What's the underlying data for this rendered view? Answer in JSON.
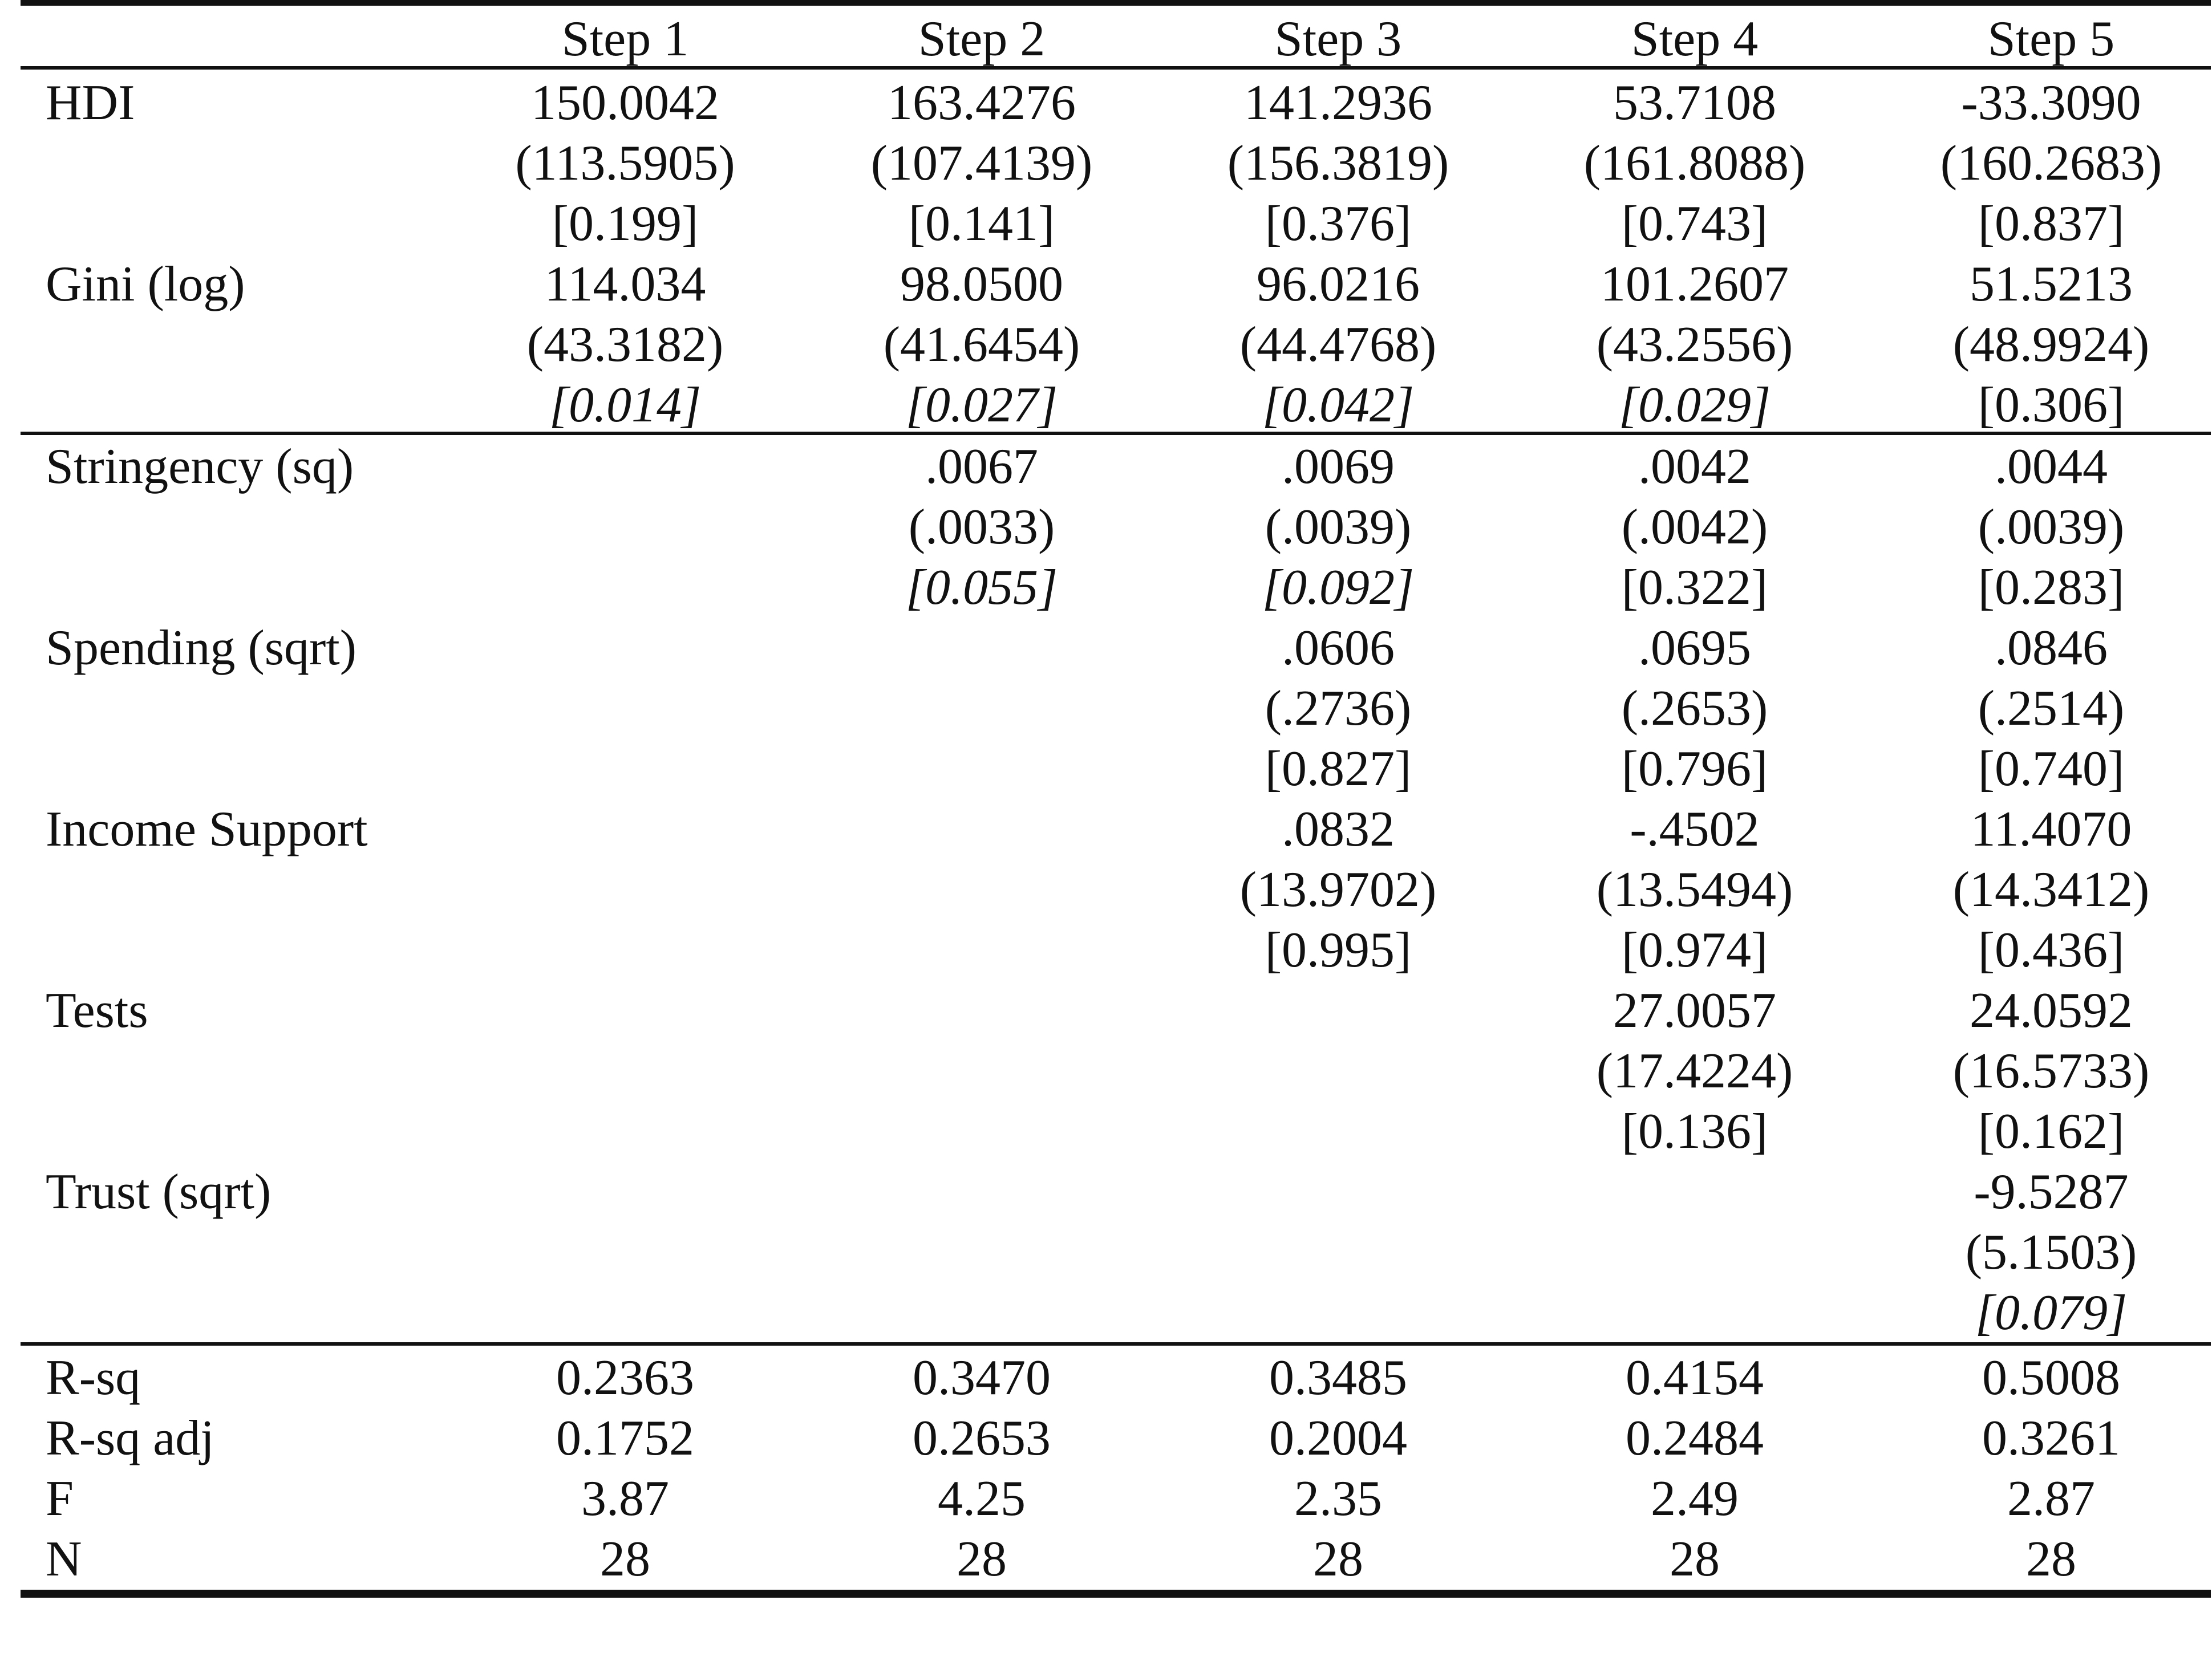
{
  "header": {
    "label": "",
    "steps": [
      "Step 1",
      "Step 2",
      "Step 3",
      "Step 4",
      "Step 5"
    ]
  },
  "rows": [
    {
      "label": "HDI",
      "cells": [
        "150.0042",
        "163.4276",
        "141.2936",
        "53.7108",
        "-33.3090"
      ]
    },
    {
      "label": "",
      "cells": [
        "(113.5905)",
        "(107.4139)",
        "(156.3819)",
        "(161.8088)",
        "(160.2683)"
      ]
    },
    {
      "label": "",
      "cells": [
        "[0.199]",
        "[0.141]",
        "[0.376]",
        "[0.743]",
        "[0.837]"
      ]
    },
    {
      "label": "Gini (log)",
      "cells": [
        "114.034",
        "98.0500",
        "96.0216",
        "101.2607",
        "51.5213"
      ]
    },
    {
      "label": "",
      "cells": [
        "(43.3182)",
        "(41.6454)",
        "(44.4768)",
        "(43.2556)",
        "(48.9924)"
      ]
    },
    {
      "label": "",
      "cells": [
        "[0.014]",
        "[0.027]",
        "[0.042]",
        "[0.029]",
        "[0.306]"
      ],
      "italic": [
        true,
        true,
        true,
        true,
        false
      ]
    },
    {
      "label": "Stringency (sq)",
      "cells": [
        "",
        ".0067",
        ".0069",
        ".0042",
        ".0044"
      ]
    },
    {
      "label": "",
      "cells": [
        "",
        "(.0033)",
        "(.0039)",
        "(.0042)",
        "(.0039)"
      ]
    },
    {
      "label": "",
      "cells": [
        "",
        "[0.055]",
        "[0.092]",
        "[0.322]",
        "[0.283]"
      ],
      "italic": [
        false,
        true,
        true,
        false,
        false
      ]
    },
    {
      "label": "Spending (sqrt)",
      "cells": [
        "",
        "",
        ".0606",
        ".0695",
        ".0846"
      ]
    },
    {
      "label": "",
      "cells": [
        "",
        "",
        "(.2736)",
        "(.2653)",
        "(.2514)"
      ]
    },
    {
      "label": "",
      "cells": [
        "",
        "",
        "[0.827]",
        "[0.796]",
        "[0.740]"
      ]
    },
    {
      "label": "Income Support",
      "cells": [
        "",
        "",
        ".0832",
        "-.4502",
        "11.4070"
      ]
    },
    {
      "label": "",
      "cells": [
        "",
        "",
        "(13.9702)",
        "(13.5494)",
        "(14.3412)"
      ]
    },
    {
      "label": "",
      "cells": [
        "",
        "",
        "[0.995]",
        "[0.974]",
        "[0.436]"
      ]
    },
    {
      "label": "Tests",
      "cells": [
        "",
        "",
        "",
        "27.0057",
        "24.0592"
      ]
    },
    {
      "label": "",
      "cells": [
        "",
        "",
        "",
        "(17.4224)",
        "(16.5733)"
      ]
    },
    {
      "label": "",
      "cells": [
        "",
        "",
        "",
        "[0.136]",
        "[0.162]"
      ]
    },
    {
      "label": "Trust (sqrt)",
      "cells": [
        "",
        "",
        "",
        "",
        "-9.5287"
      ]
    },
    {
      "label": "",
      "cells": [
        "",
        "",
        "",
        "",
        "(5.1503)"
      ]
    },
    {
      "label": "",
      "cells": [
        "",
        "",
        "",
        "",
        "[0.079]"
      ],
      "italic": [
        false,
        false,
        false,
        false,
        true
      ]
    },
    {
      "label": "R-sq",
      "cells": [
        "0.2363",
        "0.3470",
        "0.3485",
        "0.4154",
        "0.5008"
      ]
    },
    {
      "label": "R-sq adj",
      "cells": [
        "0.1752",
        "0.2653",
        "0.2004",
        "0.2484",
        "0.3261"
      ]
    },
    {
      "label": "F",
      "cells": [
        "3.87",
        "4.25",
        "2.35",
        "2.49",
        "2.87"
      ]
    },
    {
      "label": "N",
      "cells": [
        "28",
        "28",
        "28",
        "28",
        "28"
      ]
    }
  ]
}
